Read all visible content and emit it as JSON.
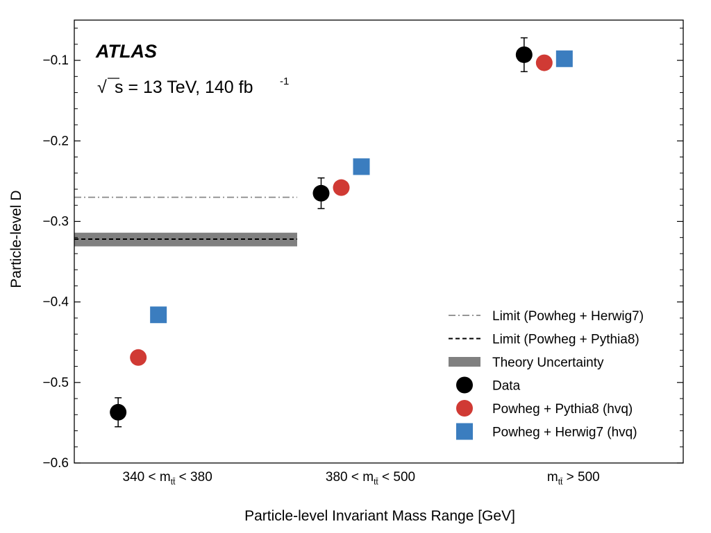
{
  "chart_data": {
    "type": "scatter",
    "experiment": "ATLAS",
    "energy_label": {
      "sqrt": "√",
      "text": "s = 13 TeV, 140 fb",
      "sup": "-1"
    },
    "ylabel": "Particle-level D",
    "xlabel": "Particle-level Invariant Mass Range [GeV]",
    "ylim": [
      -0.6,
      -0.05
    ],
    "yticks": [
      -0.6,
      -0.5,
      -0.4,
      -0.3,
      -0.2,
      -0.1
    ],
    "ytick_labels": [
      "−0.6",
      "−0.5",
      "−0.4",
      "−0.3",
      "−0.2",
      "−0.1"
    ],
    "categories": [
      {
        "pre": "340 < m",
        "sub": "tt̄",
        "post": " < 380"
      },
      {
        "pre": "380 < m",
        "sub": "tt̄",
        "post": " < 500"
      },
      {
        "pre": "m",
        "sub": "tt̄",
        "post": " > 500"
      }
    ],
    "series": [
      {
        "name": "Data",
        "marker": "circle",
        "color": "#000000",
        "values": [
          -0.537,
          -0.265,
          -0.093
        ],
        "errors": [
          0.018,
          0.019,
          0.021
        ]
      },
      {
        "name": "Powheg + Pythia8 (hvq)",
        "marker": "circle",
        "color": "#d03a34",
        "values": [
          -0.469,
          -0.258,
          -0.103
        ]
      },
      {
        "name": "Powheg + Herwig7 (hvq)",
        "marker": "square",
        "color": "#3b7dbf",
        "values": [
          -0.416,
          -0.232,
          -0.098
        ]
      }
    ],
    "limits": [
      {
        "name": "Limit (Powheg + Herwig7)",
        "value": -0.27,
        "style": "dashdot",
        "color": "#888888"
      },
      {
        "name": "Limit (Powheg + Pythia8)",
        "value": -0.322,
        "style": "dashed",
        "color": "#000000"
      }
    ],
    "band": {
      "name": "Theory Uncertainty",
      "low": -0.331,
      "high": -0.314,
      "color": "#808080"
    },
    "legend_position": "lower-right",
    "grid": false
  }
}
